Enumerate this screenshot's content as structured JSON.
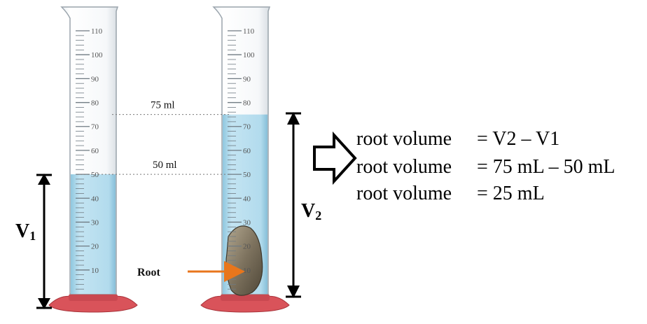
{
  "cylinder_scale": [
    "10",
    "20",
    "30",
    "40",
    "50",
    "60",
    "70",
    "80",
    "90",
    "100",
    "110"
  ],
  "left_cylinder": {
    "water_level_ml": 50,
    "level_label": "50 ml",
    "volume_label": {
      "letter": "V",
      "subscript": "1"
    }
  },
  "right_cylinder": {
    "water_level_ml": 75,
    "level_label": "75 ml",
    "volume_label": {
      "letter": "V",
      "subscript": "2"
    },
    "object_label": "Root"
  },
  "equations": [
    {
      "lhs": "root volume",
      "rhs": "= V2 – V1"
    },
    {
      "lhs": "root volume",
      "rhs": "= 75 mL – 50 mL"
    },
    {
      "lhs": "root volume",
      "rhs": "= 25 mL"
    }
  ],
  "colors": {
    "water": "#a9d6ea",
    "arrow": "#e8761c",
    "base": "#d9535a",
    "rock": "#8a7f6b"
  }
}
